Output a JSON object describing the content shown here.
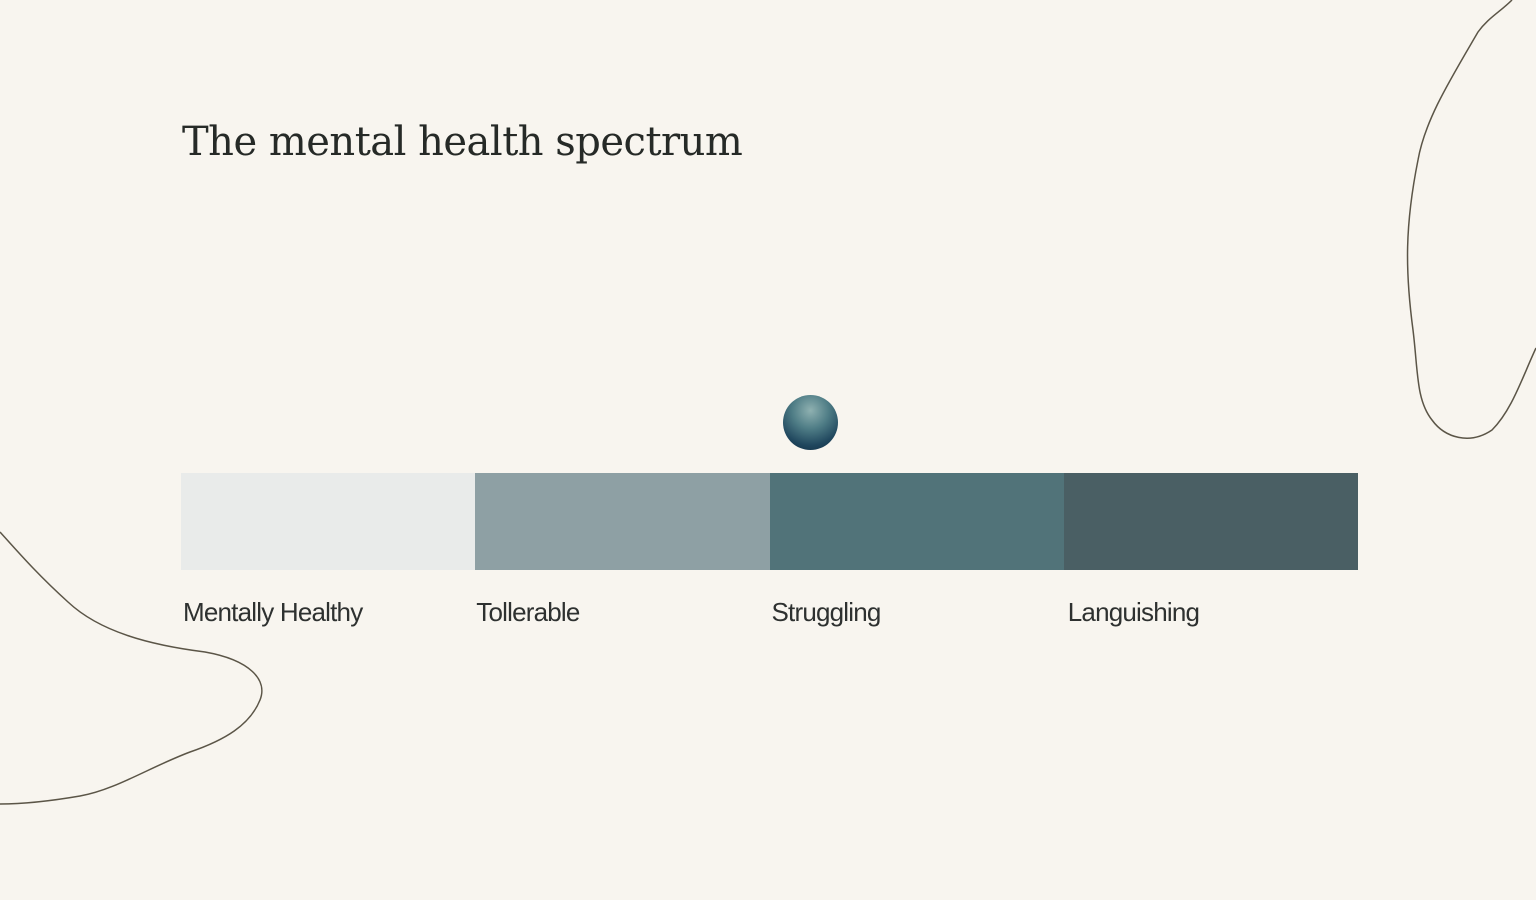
{
  "title": "The mental health spectrum",
  "spectrum": {
    "segments": [
      {
        "label": "Mentally Healthy",
        "color": "#e9ebea"
      },
      {
        "label": "Tollerable",
        "color": "#8ea0a4"
      },
      {
        "label": "Struggling",
        "color": "#517379"
      },
      {
        "label": "Languishing",
        "color": "#4a5f64"
      }
    ],
    "marker_segment": "Struggling"
  },
  "colors": {
    "background": "#f8f5ef",
    "line": "#5b5547",
    "text": "#2b2b2b"
  }
}
